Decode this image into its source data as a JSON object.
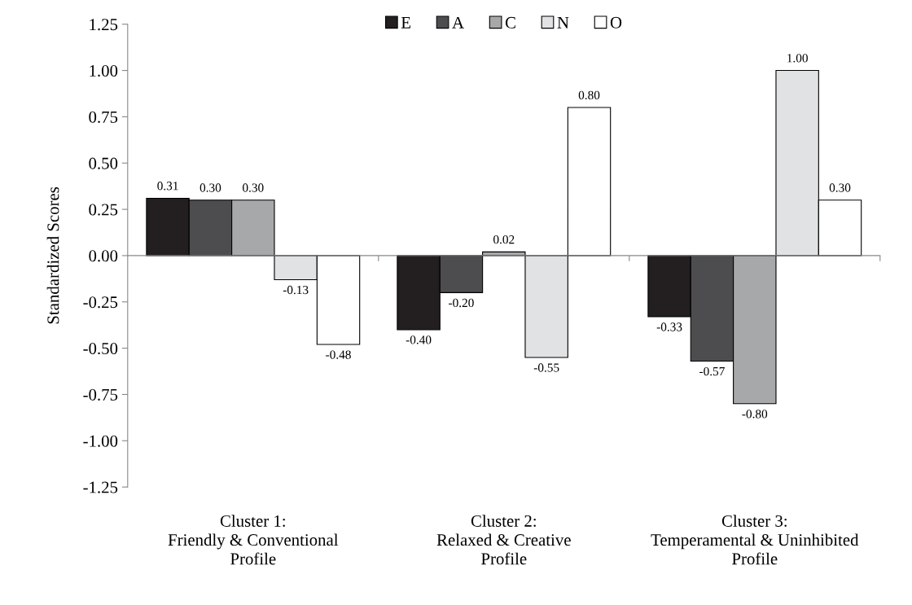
{
  "chart_data": {
    "type": "bar",
    "ylabel": "Standardized Scores",
    "categories": [
      "Cluster 1:\nFriendly & Conventional\nProfile",
      "Cluster 2:\nRelaxed & Creative\nProfile",
      "Cluster 3:\nTemperamental & Uninhibited\nProfile"
    ],
    "series": [
      {
        "name": "E",
        "color": "#231f20",
        "values": [
          0.31,
          -0.4,
          -0.33
        ],
        "value_labels": [
          "0.31",
          "-0.40",
          "-0.33"
        ]
      },
      {
        "name": "A",
        "color": "#4d4d4f",
        "values": [
          0.3,
          -0.2,
          -0.57
        ],
        "value_labels": [
          "0.30",
          "-0.20",
          "-0.57"
        ]
      },
      {
        "name": "C",
        "color": "#a7a8aa",
        "values": [
          0.3,
          0.02,
          -0.8
        ],
        "value_labels": [
          "0.30",
          "0.02",
          "-0.80"
        ]
      },
      {
        "name": "N",
        "color": "#e1e2e3",
        "values": [
          -0.13,
          -0.55,
          1.0
        ],
        "value_labels": [
          "-0.13",
          "-0.55",
          "1.00"
        ]
      },
      {
        "name": "O",
        "color": "#ffffff",
        "values": [
          -0.48,
          0.8,
          0.3
        ],
        "value_labels": [
          "-0.48",
          "0.80",
          "0.30"
        ]
      }
    ],
    "ylim": [
      -1.25,
      1.25
    ],
    "yticks": [
      -1.25,
      {
        "value": -1.0,
        "label": "-1.00"
      },
      -0.75,
      {
        "value": -0.5,
        "label": "-0.50"
      },
      -0.25,
      {
        "value": 0,
        "label": "0.00"
      },
      0.25,
      {
        "value": 0.5,
        "label": "0.50"
      },
      0.75,
      {
        "value": 1.0,
        "label": "1.00"
      },
      1.25
    ],
    "legend": "top"
  }
}
